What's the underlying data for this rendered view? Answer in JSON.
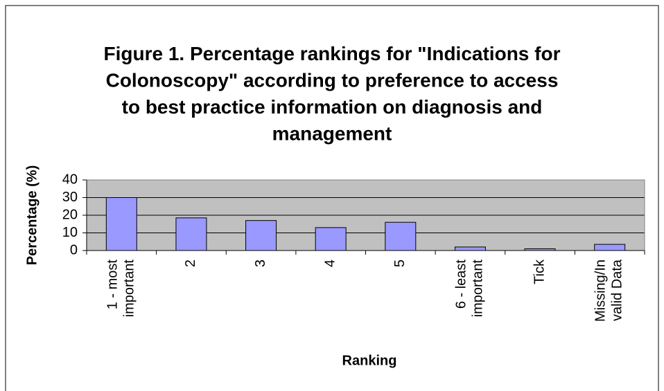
{
  "chart_data": {
    "type": "bar",
    "title": "Figure 1. Percentage rankings for \"Indications for\nColonoscopy\" according to preference to access\nto best practice information on diagnosis and\nmanagement",
    "xlabel": "Ranking",
    "ylabel": "Percentage (%)",
    "categories": [
      "1 - most\nimportant",
      "2",
      "3",
      "4",
      "5",
      "6 - least\nimportant",
      "Tick",
      "Missing/In\nvalid Data"
    ],
    "values": [
      30,
      18.5,
      17,
      13,
      16,
      2,
      1,
      3.5
    ],
    "color": "#9999ff",
    "background": "#c0c0c0",
    "ylim": [
      0,
      40
    ],
    "yticks": [
      0,
      10,
      20,
      30,
      40
    ],
    "grid": true
  }
}
